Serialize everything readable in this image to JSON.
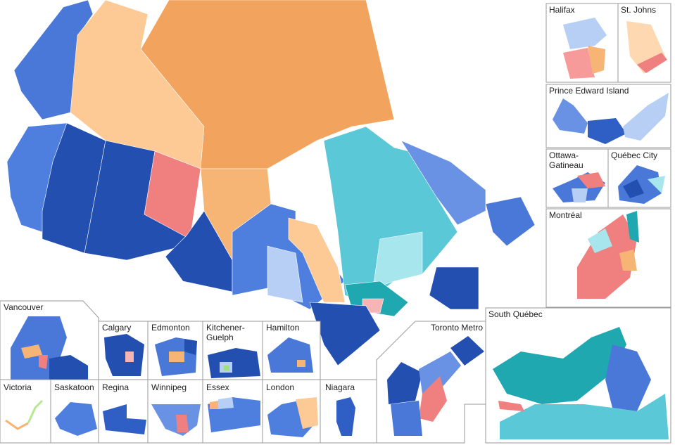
{
  "map": {
    "insets": [
      {
        "label": "Halifax"
      },
      {
        "label": "St. Johns"
      },
      {
        "label": "Prince Edward Island"
      },
      {
        "lines": [
          "Ottawa-",
          "Gatineau"
        ]
      },
      {
        "label": "Québec City"
      },
      {
        "label": "Montréal"
      },
      {
        "label": "South Québec"
      },
      {
        "label": "Vancouver"
      },
      {
        "label": "Calgary"
      },
      {
        "label": "Edmonton"
      },
      {
        "lines": [
          "Kitchener-",
          "Guelph"
        ]
      },
      {
        "label": "Hamilton"
      },
      {
        "label": "Toronto Metro"
      },
      {
        "label": "Victoria"
      },
      {
        "label": "Saskatoon"
      },
      {
        "label": "Regina"
      },
      {
        "label": "Winnipeg"
      },
      {
        "label": "Essex"
      },
      {
        "label": "London"
      },
      {
        "label": "Niagara"
      }
    ]
  }
}
